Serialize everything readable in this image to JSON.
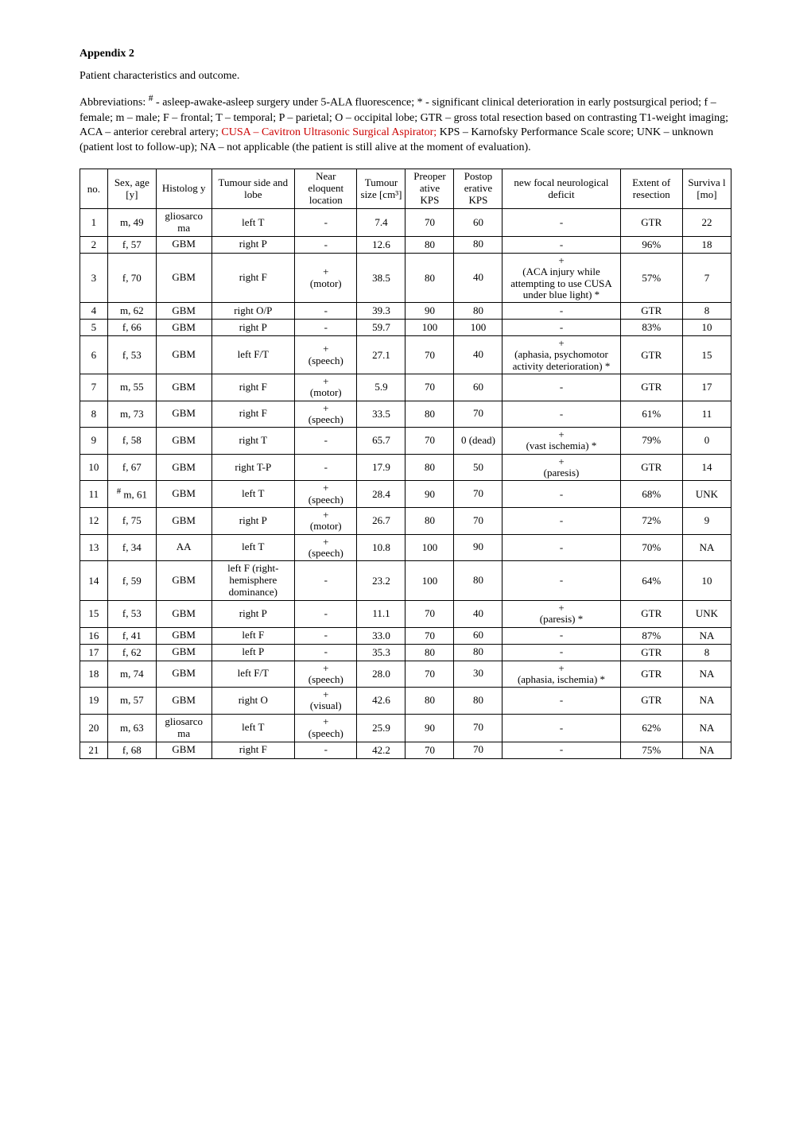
{
  "doc": {
    "title": "Appendix 2",
    "subtitle": "Patient characteristics and outcome.",
    "abbrev_pre": "Abbreviations: ",
    "abbrev_hash": "#",
    "abbrev_mid1": " - asleep-awake-asleep surgery under 5-ALA fluorescence; * - significant clinical deterioration in early postsurgical period; f – female; m – male; F – frontal; T – temporal; P – parietal; O – occipital lobe; GTR – gross total resection based on contrasting T1-weight imaging; ACA – anterior cerebral artery; ",
    "abbrev_red": "CUSA – Cavitron Ultrasonic Surgical Aspirator;",
    "abbrev_mid2": " KPS – Karnofsky Performance Scale score; UNK – unknown (patient lost to follow-up); NA – not applicable (the patient is still alive at the moment of evaluation)."
  },
  "table": {
    "headers": {
      "no": "no.",
      "sex": "Sex, age [y]",
      "hist": "Histolog y",
      "side": "Tumour side and lobe",
      "eloq": "Near eloquent location",
      "size": "Tumour size [cm³]",
      "preop": "Preoper ative KPS",
      "postop": "Postop erative KPS",
      "deficit": "new focal neurological deficit",
      "extent": "Extent of resection",
      "surv": "Surviva l [mo]"
    },
    "rows": [
      {
        "no": "1",
        "sex": "m, 49",
        "hist": "gliosarco ma",
        "side": "left T",
        "eloq": "-",
        "size": "7.4",
        "pre": "70",
        "post": "60",
        "def": "-",
        "ext": "GTR",
        "surv": "22"
      },
      {
        "no": "2",
        "sex": "f, 57",
        "hist": "GBM",
        "side": "right P",
        "eloq": "-",
        "size": "12.6",
        "pre": "80",
        "post": "80",
        "def": "-",
        "ext": "96%",
        "surv": "18"
      },
      {
        "no": "3",
        "sex": "f, 70",
        "hist": "GBM",
        "side": "right F",
        "eloq": "+\n(motor)",
        "size": "38.5",
        "pre": "80",
        "post": "40",
        "def": "+\n(ACA injury while attempting to use CUSA under blue light) *",
        "ext": "57%",
        "surv": "7"
      },
      {
        "no": "4",
        "sex": "m, 62",
        "hist": "GBM",
        "side": "right O/P",
        "eloq": "-",
        "size": "39.3",
        "pre": "90",
        "post": "80",
        "def": "-",
        "ext": "GTR",
        "surv": "8"
      },
      {
        "no": "5",
        "sex": "f, 66",
        "hist": "GBM",
        "side": "right P",
        "eloq": "-",
        "size": "59.7",
        "pre": "100",
        "post": "100",
        "def": "-",
        "ext": "83%",
        "surv": "10"
      },
      {
        "no": "6",
        "sex": "f, 53",
        "hist": "GBM",
        "side": "left F/T",
        "eloq": "+\n(speech)",
        "size": "27.1",
        "pre": "70",
        "post": "40",
        "def": "+\n(aphasia, psychomotor activity deterioration) *",
        "ext": "GTR",
        "surv": "15"
      },
      {
        "no": "7",
        "sex": "m, 55",
        "hist": "GBM",
        "side": "right F",
        "eloq": "+\n(motor)",
        "size": "5.9",
        "pre": "70",
        "post": "60",
        "def": "-",
        "ext": "GTR",
        "surv": "17"
      },
      {
        "no": "8",
        "sex": "m, 73",
        "hist": "GBM",
        "side": "right F",
        "eloq": "+\n(speech)",
        "size": "33.5",
        "pre": "80",
        "post": "70",
        "def": "-",
        "ext": "61%",
        "surv": "11"
      },
      {
        "no": "9",
        "sex": "f, 58",
        "hist": "GBM",
        "side": "right T",
        "eloq": "-",
        "size": "65.7",
        "pre": "70",
        "post": "0 (dead)",
        "def": "+\n(vast ischemia) *",
        "ext": "79%",
        "surv": "0"
      },
      {
        "no": "10",
        "sex": "f, 67",
        "hist": "GBM",
        "side": "right T-P",
        "eloq": "-",
        "size": "17.9",
        "pre": "80",
        "post": "50",
        "def": "+\n(paresis)",
        "ext": "GTR",
        "surv": "14"
      },
      {
        "no": "11",
        "sex": "# m, 61",
        "hist": "GBM",
        "side": "left T",
        "eloq": "+\n(speech)",
        "size": "28.4",
        "pre": "90",
        "post": "70",
        "def": "-",
        "ext": "68%",
        "surv": "UNK"
      },
      {
        "no": "12",
        "sex": "f, 75",
        "hist": "GBM",
        "side": "right P",
        "eloq": "+\n(motor)",
        "size": "26.7",
        "pre": "80",
        "post": "70",
        "def": "-",
        "ext": "72%",
        "surv": "9"
      },
      {
        "no": "13",
        "sex": "f, 34",
        "hist": "AA",
        "side": "left T",
        "eloq": "+\n(speech)",
        "size": "10.8",
        "pre": "100",
        "post": "90",
        "def": "-",
        "ext": "70%",
        "surv": "NA"
      },
      {
        "no": "14",
        "sex": "f, 59",
        "hist": "GBM",
        "side": "left F (right-hemisphere dominance)",
        "eloq": "-",
        "size": "23.2",
        "pre": "100",
        "post": "80",
        "def": "-",
        "ext": "64%",
        "surv": "10"
      },
      {
        "no": "15",
        "sex": "f, 53",
        "hist": "GBM",
        "side": "right P",
        "eloq": "-",
        "size": "11.1",
        "pre": "70",
        "post": "40",
        "def": "+\n(paresis) *",
        "ext": "GTR",
        "surv": "UNK"
      },
      {
        "no": "16",
        "sex": "f, 41",
        "hist": "GBM",
        "side": "left F",
        "eloq": "-",
        "size": "33.0",
        "pre": "70",
        "post": "60",
        "def": "-",
        "ext": "87%",
        "surv": "NA"
      },
      {
        "no": "17",
        "sex": "f, 62",
        "hist": "GBM",
        "side": "left P",
        "eloq": "-",
        "size": "35.3",
        "pre": "80",
        "post": "80",
        "def": "-",
        "ext": "GTR",
        "surv": "8"
      },
      {
        "no": "18",
        "sex": "m, 74",
        "hist": "GBM",
        "side": "left F/T",
        "eloq": "+\n(speech)",
        "size": "28.0",
        "pre": "70",
        "post": "30",
        "def": "+\n(aphasia, ischemia) *",
        "ext": "GTR",
        "surv": "NA"
      },
      {
        "no": "19",
        "sex": "m, 57",
        "hist": "GBM",
        "side": "right O",
        "eloq": "+\n(visual)",
        "size": "42.6",
        "pre": "80",
        "post": "80",
        "def": "-",
        "ext": "GTR",
        "surv": "NA"
      },
      {
        "no": "20",
        "sex": "m, 63",
        "hist": "gliosarco ma",
        "side": "left T",
        "eloq": "+\n(speech)",
        "size": "25.9",
        "pre": "90",
        "post": "70",
        "def": "-",
        "ext": "62%",
        "surv": "NA"
      },
      {
        "no": "21",
        "sex": "f, 68",
        "hist": "GBM",
        "side": "right F",
        "eloq": "-",
        "size": "42.2",
        "pre": "70",
        "post": "70",
        "def": "-",
        "ext": "75%",
        "surv": "NA"
      }
    ]
  },
  "style": {
    "font_family": "Times New Roman",
    "body_fontsize_pt": 11,
    "table_fontsize_pt": 10,
    "text_color": "#000000",
    "red_color": "#cc0000",
    "border_color": "#000000",
    "background_color": "#ffffff",
    "col_widths_pct": [
      4,
      7,
      8,
      12,
      9,
      7,
      7,
      7,
      17,
      9,
      7
    ]
  }
}
